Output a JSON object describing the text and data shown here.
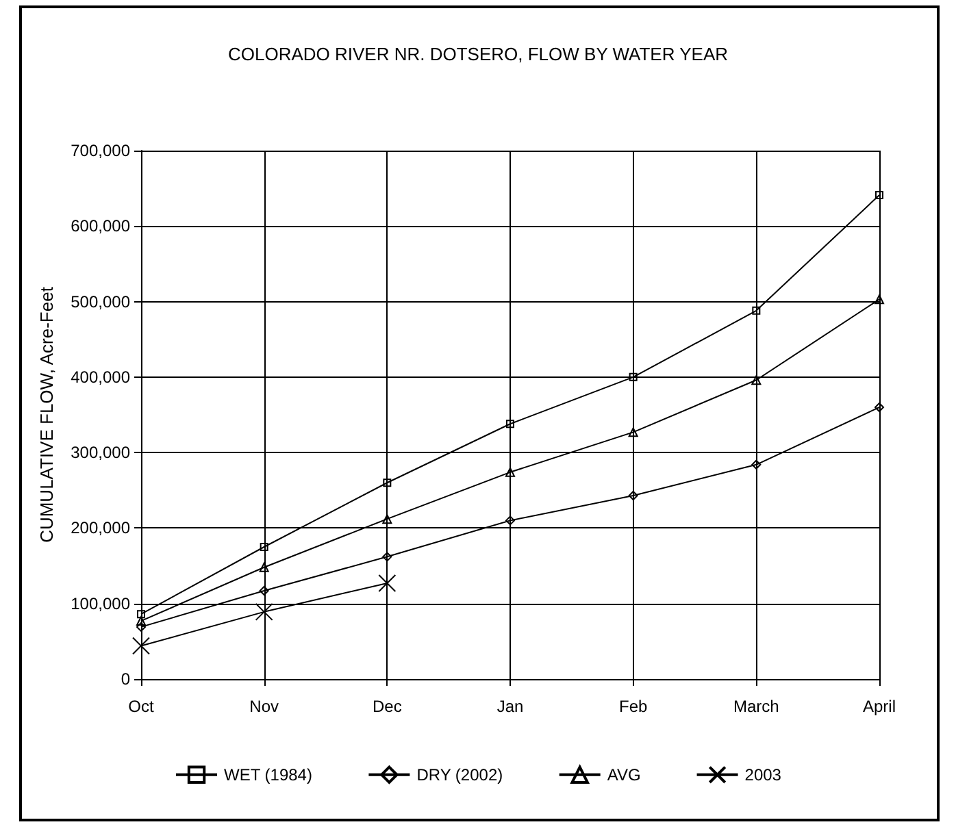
{
  "chart_data": {
    "type": "line",
    "title": "COLORADO RIVER NR. DOTSERO, FLOW BY WATER YEAR",
    "ylabel": "CUMULATIVE FLOW, Acre-Feet",
    "categories": [
      "Oct",
      "Nov",
      "Dec",
      "Jan",
      "Feb",
      "March",
      "April"
    ],
    "series": [
      {
        "name": "WET (1984)",
        "color": "#000000",
        "marker": "square",
        "values": [
          86000,
          175000,
          260000,
          338000,
          400000,
          488000,
          641000
        ]
      },
      {
        "name": "DRY (2002)",
        "color": "#000000",
        "marker": "diamond",
        "values": [
          69000,
          117000,
          162000,
          210000,
          243000,
          284000,
          360000
        ]
      },
      {
        "name": "AVG",
        "color": "#000000",
        "marker": "triangle",
        "values": [
          77000,
          148000,
          212000,
          274000,
          327000,
          396000,
          503000
        ]
      },
      {
        "name": "2003",
        "color": "#000000",
        "marker": "cross",
        "values": [
          44000,
          89000,
          127000,
          null,
          null,
          null,
          null
        ]
      }
    ],
    "ylim": [
      0,
      700000
    ],
    "yticks": [
      0,
      {
        "value": 100000,
        "label": "100,000"
      },
      {
        "value": 200000,
        "label": "200,000"
      },
      {
        "value": 300000,
        "label": "300,000"
      },
      {
        "value": 400000,
        "label": "400,000"
      },
      {
        "value": 500000,
        "label": "500,000"
      },
      {
        "value": 600000,
        "label": "600,000"
      },
      {
        "value": 700000,
        "label": "700,000"
      }
    ],
    "grid": true,
    "legend": "bottom",
    "line_style": "solid"
  }
}
